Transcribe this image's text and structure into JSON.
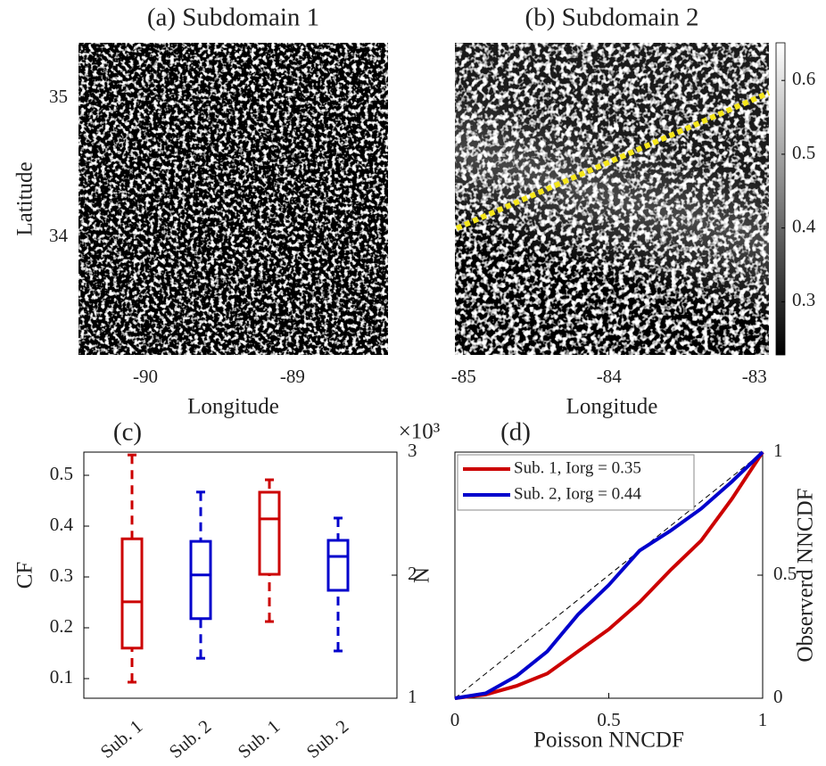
{
  "chart_data": [
    {
      "type": "image",
      "title": "(a) Subdomain 1",
      "xlabel": "Longitude",
      "ylabel": "Latitude",
      "xlim": [
        -90.455,
        -88.35
      ],
      "ylim": [
        33.154,
        35.4
      ],
      "xticks": [
        -90,
        -89
      ],
      "yticks": [
        34,
        35
      ]
    },
    {
      "type": "image",
      "title": "(b) Subdomain 2",
      "xlabel": "Longitude",
      "xlim": [
        -85.06,
        -82.9
      ],
      "ylim": [
        33.154,
        35.4
      ],
      "xticks": [
        -85,
        -84,
        -83
      ],
      "colorbar": {
        "clim": [
          0.228,
          0.651
        ],
        "ticks": [
          0.3,
          0.4,
          0.5,
          0.6
        ]
      }
    },
    {
      "type": "box",
      "title": "(c)",
      "ylabel": "CF",
      "y2label": "N",
      "y2_exponent_label": "×10³",
      "categories": [
        "Sub. 1",
        "Sub. 2",
        "Sub. 1",
        "Sub. 2"
      ],
      "ylim": [
        0.0614,
        0.5456
      ],
      "yticks": [
        0.1,
        0.2,
        0.3,
        0.4,
        0.5
      ],
      "y2lim": [
        1,
        3
      ],
      "y2ticks": [
        1,
        2,
        3
      ],
      "boxes": [
        {
          "color": "#cc0000",
          "axis": "y",
          "min": 0.093,
          "q1": 0.16,
          "median": 0.251,
          "q3": 0.375,
          "max": 0.54
        },
        {
          "color": "#0000cc",
          "axis": "y",
          "min": 0.14,
          "q1": 0.218,
          "median": 0.304,
          "q3": 0.37,
          "max": 0.467
        },
        {
          "color": "#cc0000",
          "axis": "y2",
          "min": 1.623,
          "q1": 2.007,
          "median": 2.457,
          "q3": 2.674,
          "max": 2.775
        },
        {
          "color": "#0000cc",
          "axis": "y2",
          "min": 1.384,
          "q1": 1.877,
          "median": 2.152,
          "q3": 2.283,
          "max": 2.464
        }
      ]
    },
    {
      "type": "line",
      "title": "(d)",
      "xlabel": "Poisson NNCDF",
      "y2label": "Observerd NNCDF",
      "xlim": [
        0,
        1
      ],
      "xticks": [
        0,
        0.5,
        1
      ],
      "y2lim": [
        0,
        1
      ],
      "y2ticks": [
        0,
        0.5,
        1
      ],
      "x": [
        0,
        0.1,
        0.2,
        0.3,
        0.4,
        0.5,
        0.6,
        0.7,
        0.8,
        0.9,
        1
      ],
      "series": [
        {
          "name": "Sub. 1, Iorg = 0.35",
          "color": "#cc0000",
          "axis": "y2",
          "values": [
            0,
            0.015,
            0.05,
            0.1,
            0.19,
            0.28,
            0.39,
            0.52,
            0.64,
            0.81,
            1
          ]
        },
        {
          "name": "Sub. 2, Iorg = 0.44",
          "color": "#0000cc",
          "axis": "y2",
          "values": [
            0,
            0.02,
            0.09,
            0.19,
            0.34,
            0.46,
            0.6,
            0.68,
            0.77,
            0.88,
            1
          ]
        }
      ]
    }
  ]
}
